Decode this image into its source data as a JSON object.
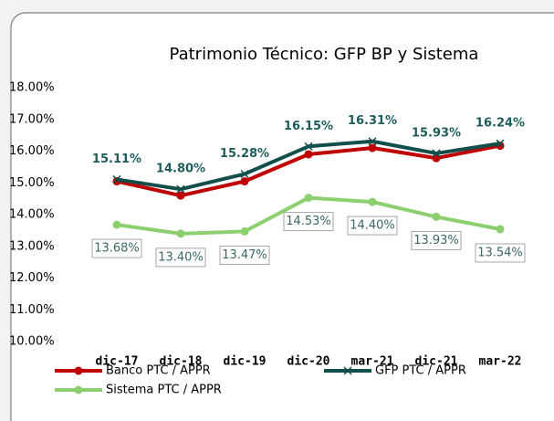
{
  "chart_data": {
    "type": "line",
    "title": "Patrimonio Técnico: GFP BP y Sistema",
    "categories": [
      "dic-17",
      "dic-18",
      "dic-19",
      "dic-20",
      "mar-21",
      "dic-21",
      "mar-22"
    ],
    "series": [
      {
        "name": "Banco PTC / APPR",
        "color": "#c00000",
        "marker": "circle",
        "values": [
          15.05,
          14.6,
          15.05,
          15.9,
          16.1,
          15.78,
          16.17
        ]
      },
      {
        "name": "GFP PTC / APPR",
        "color": "#134f4a",
        "marker": "x",
        "values": [
          15.11,
          14.8,
          15.28,
          16.15,
          16.31,
          15.93,
          16.24
        ],
        "value_labels": [
          "15.11%",
          "14.80%",
          "15.28%",
          "16.15%",
          "16.31%",
          "15.93%",
          "16.24%"
        ]
      },
      {
        "name": "Sistema PTC / APPR",
        "color": "#8ccf6e",
        "marker": "circle",
        "values": [
          13.68,
          13.4,
          13.47,
          14.53,
          14.4,
          13.93,
          13.54
        ],
        "value_labels": [
          "13.68%",
          "13.40%",
          "13.47%",
          "14.53%",
          "14.40%",
          "13.93%",
          "13.54%"
        ]
      }
    ],
    "ylim": [
      10,
      18
    ],
    "yticks": [
      {
        "value": 10,
        "label": "10.00%"
      },
      {
        "value": 11,
        "label": "11.00%"
      },
      {
        "value": 12,
        "label": "12.00%"
      },
      {
        "value": 13,
        "label": "13.00%"
      },
      {
        "value": 14,
        "label": "14.00%"
      },
      {
        "value": 15,
        "label": "15.00%"
      },
      {
        "value": 16,
        "label": "16.00%"
      },
      {
        "value": 17,
        "label": "17.00%"
      },
      {
        "value": 18,
        "label": "18.00%"
      }
    ],
    "grid": false
  }
}
